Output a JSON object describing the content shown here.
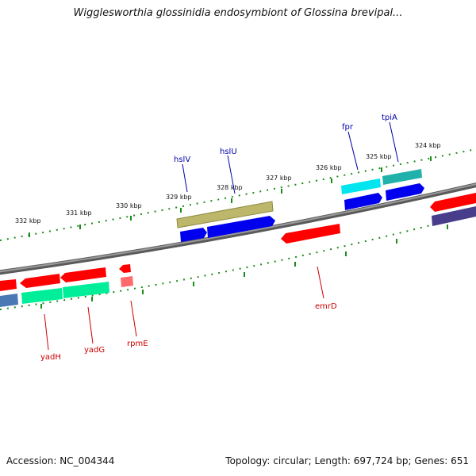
{
  "title": "Wigglesworthia glossinidia endosymbiont of Glossina brevipal...",
  "footer": {
    "accession": "Accession: NC_004344",
    "summary": "Topology: circular; Length: 697,724 bp; Genes: 651"
  },
  "scale_labels": [
    "332 kbp",
    "331 kbp",
    "330 kbp",
    "329 kbp",
    "328 kbp",
    "327 kbp",
    "326 kbp",
    "325 kbp",
    "324 kbp"
  ],
  "gene_labels_forward": [
    "hslV",
    "hslU",
    "fpr",
    "tpiA"
  ],
  "gene_labels_reverse": [
    "yadH",
    "yadG",
    "rpmE",
    "emrD"
  ],
  "colors": {
    "backbone": "#808080",
    "ruler": "#1a8c1a",
    "forward_label": "#0000aa",
    "reverse_label": "#cc0000",
    "red_gene": "#ff0000",
    "blue_gene": "#0000ee",
    "cyan_gene": "#00e5ee",
    "teal_gene": "#20b2aa",
    "khaki_gene": "#bdb76b",
    "green_gene": "#00ee99",
    "steel_gene": "#4a78b4",
    "navy_gene": "#483d8b",
    "pink_gene": "#ff6a6a"
  }
}
